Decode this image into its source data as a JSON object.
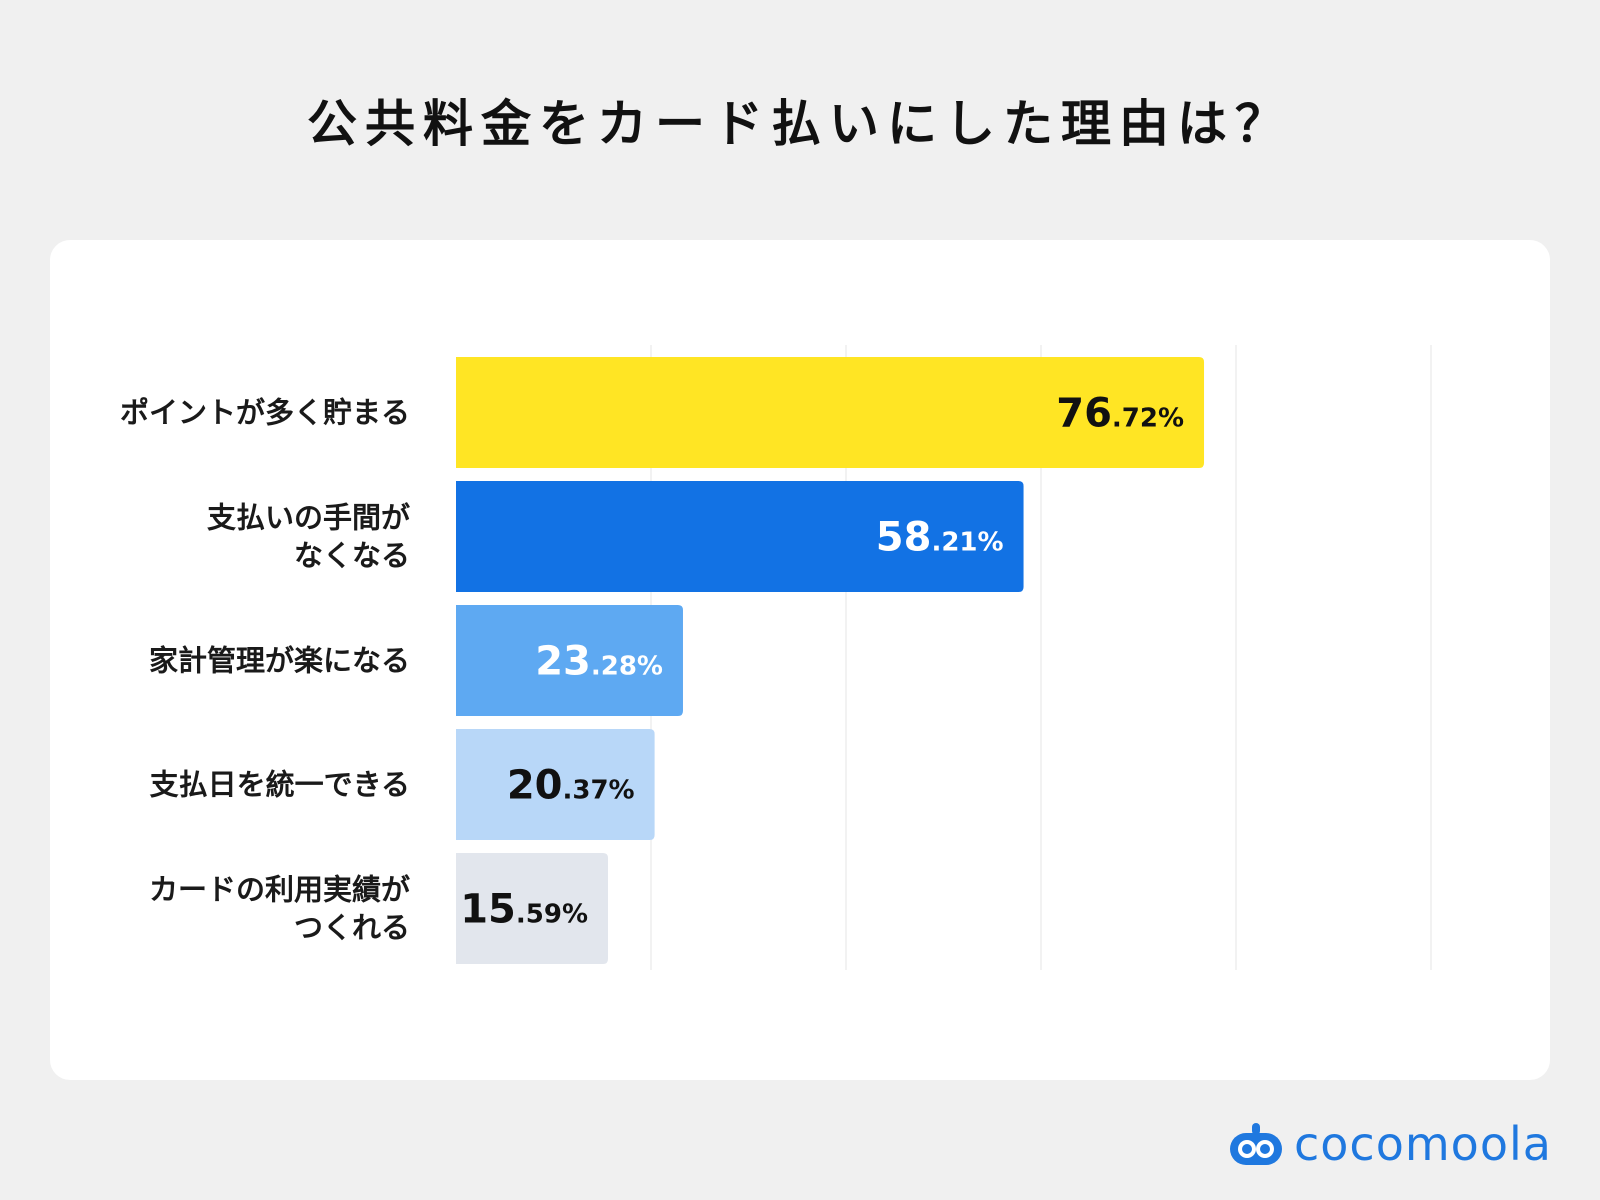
{
  "title": "公共料金をカード払いにした理由は？",
  "brand": {
    "name": "cocomoola",
    "color": "#1f78df",
    "icon": "cocomoola-logo-icon"
  },
  "chart_data": {
    "type": "bar",
    "orientation": "horizontal",
    "title": "公共料金をカード払いにした理由は？",
    "xlabel": "",
    "ylabel": "",
    "xlim": [
      0,
      100
    ],
    "grid": true,
    "legend": "none",
    "unit": "%",
    "categories": [
      [
        "ポイントが多く貯まる"
      ],
      [
        "支払いの手間が",
        "なくなる"
      ],
      [
        "家計管理が楽になる"
      ],
      [
        "支払日を統一できる"
      ],
      [
        "カードの利用実績が",
        "つくれる"
      ]
    ],
    "values": [
      76.72,
      58.21,
      23.28,
      20.37,
      15.59
    ],
    "value_labels": [
      {
        "int": "76",
        "dec": ".72%"
      },
      {
        "int": "58",
        "dec": ".21%"
      },
      {
        "int": "23",
        "dec": ".28%"
      },
      {
        "int": "20",
        "dec": ".37%"
      },
      {
        "int": "15",
        "dec": ".59%"
      }
    ],
    "colors": [
      "#ffe524",
      "#1272e4",
      "#5ea9f2",
      "#b8d7f8",
      "#e2e6ed"
    ],
    "label_colors": [
      "#111111",
      "#ffffff",
      "#ffffff",
      "#111111",
      "#111111"
    ]
  }
}
